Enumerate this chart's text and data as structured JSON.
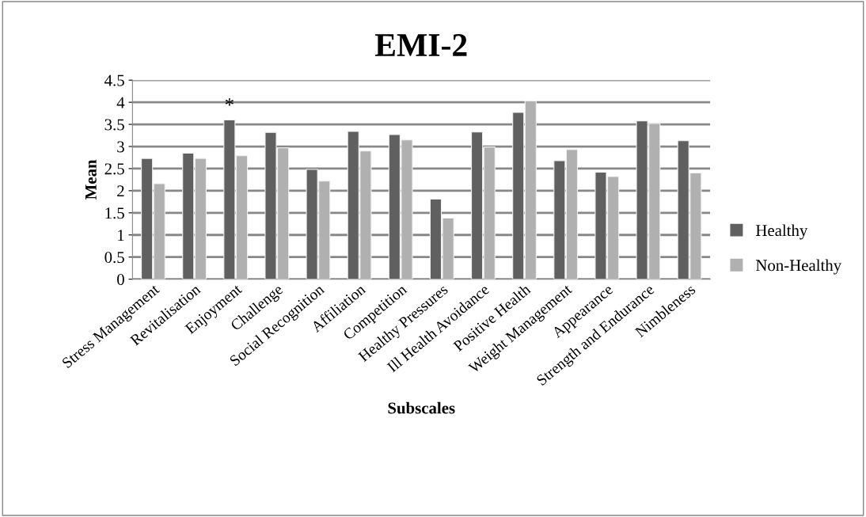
{
  "chart_data": {
    "type": "bar",
    "title": "EMI-2",
    "xlabel": "Subscales",
    "ylabel": "Mean",
    "categories": [
      "Stress Management",
      "Revitalisation",
      "Enjoyment",
      "Challenge",
      "Social Recognition",
      "Affiliation",
      "Competition",
      "Healthy Pressures",
      "Ill Health Avoidance",
      "Positive Health",
      "Weight Management",
      "Appearance",
      "Strength and Endurance",
      "Nimbleness"
    ],
    "series": [
      {
        "name": "Healthy",
        "color": "#606060",
        "values": [
          2.73,
          2.85,
          3.6,
          3.32,
          2.48,
          3.34,
          3.27,
          1.81,
          3.33,
          3.77,
          2.68,
          2.42,
          3.58,
          3.13
        ]
      },
      {
        "name": "Non-Healthy",
        "color": "#b0b0b0",
        "values": [
          2.16,
          2.73,
          2.79,
          2.97,
          2.22,
          2.9,
          3.15,
          1.38,
          2.99,
          4.03,
          2.93,
          2.32,
          3.52,
          2.4
        ]
      }
    ],
    "annotations": [
      {
        "text": "*",
        "x": "Enjoyment",
        "y": 3.6
      }
    ],
    "ylim": [
      0,
      4.5
    ],
    "yticks": [
      0,
      0.5,
      1,
      1.5,
      2,
      2.5,
      3,
      3.5,
      4,
      4.5
    ],
    "grid": "y",
    "legend": "right"
  }
}
